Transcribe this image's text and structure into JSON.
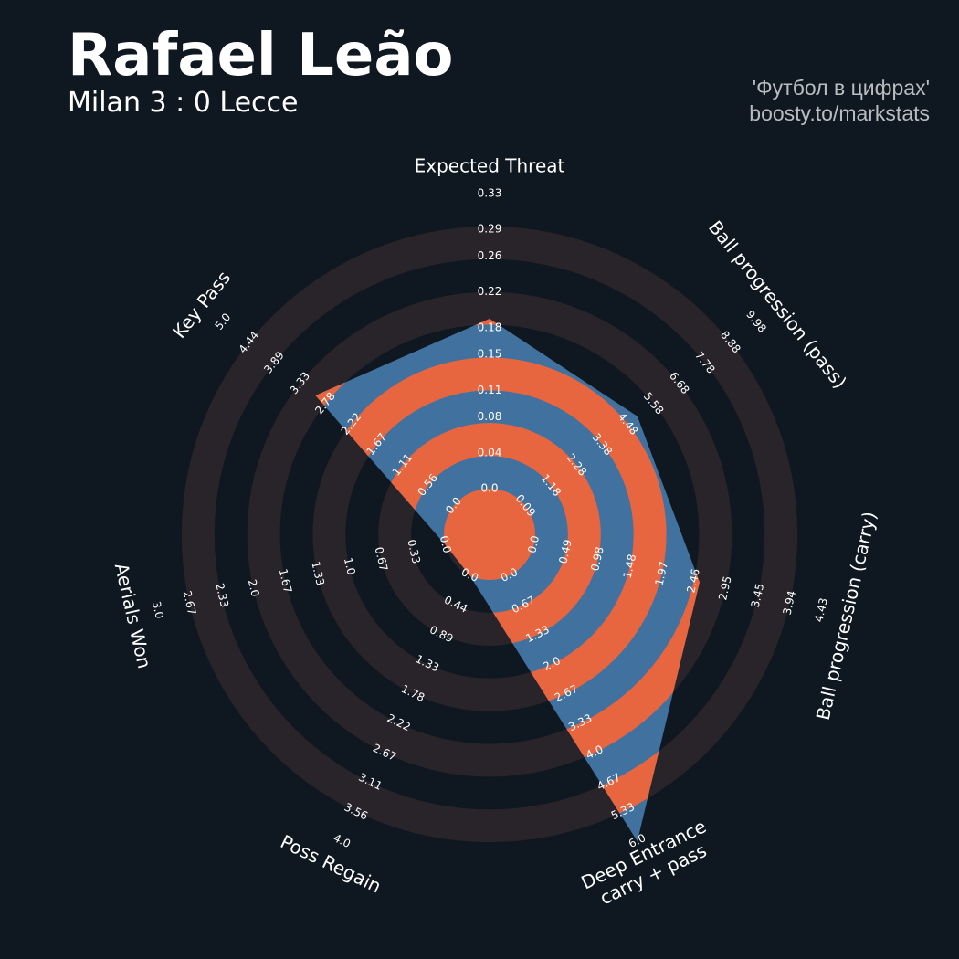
{
  "chart_data": {
    "type": "radar",
    "title": "Rafael Leão",
    "subtitle": "Milan 3 : 0 Lecce",
    "credits": [
      "'Футбол в цифрах'",
      "boosty.to/markstats"
    ],
    "categories": [
      "Expected Threat",
      "Ball progression (pass)",
      "Ball progression (carry)",
      "Deep Entrance\ncarry + pass",
      "Poss Regain",
      "Aerials Won",
      "Key Pass"
    ],
    "values": [
      0.19,
      4.9,
      2.55,
      6.0,
      0,
      0,
      3.0
    ],
    "ticks": [
      [
        {
          "value": 0,
          "label": "0.0"
        },
        0.04,
        0.08,
        0.11,
        0.15,
        0.18,
        0.22,
        0.26,
        0.29,
        0.33
      ],
      [
        0.09,
        1.18,
        2.28,
        3.38,
        4.48,
        5.58,
        6.68,
        7.78,
        8.88,
        9.98
      ],
      [
        {
          "value": 0,
          "label": "0.0"
        },
        0.49,
        0.98,
        1.48,
        1.97,
        2.46,
        2.95,
        3.45,
        3.94,
        4.43
      ],
      [
        {
          "value": 0,
          "label": "0.0"
        },
        0.67,
        1.33,
        {
          "value": 2,
          "label": "2.0"
        },
        2.67,
        3.33,
        {
          "value": 4,
          "label": "4.0"
        },
        4.67,
        5.33,
        {
          "value": 6,
          "label": "6.0"
        }
      ],
      [
        {
          "value": 0,
          "label": "0.0"
        },
        0.44,
        0.89,
        1.33,
        1.78,
        2.22,
        2.67,
        3.11,
        3.56,
        {
          "value": 4,
          "label": "4.0"
        }
      ],
      [
        {
          "value": 0,
          "label": "0.0"
        },
        0.33,
        0.67,
        {
          "value": 1,
          "label": "1.0"
        },
        1.33,
        1.67,
        {
          "value": 2,
          "label": "2.0"
        },
        2.33,
        2.67,
        {
          "value": 3,
          "label": "3.0"
        }
      ],
      [
        {
          "value": 0,
          "label": "0.0"
        },
        0.56,
        1.11,
        1.67,
        2.22,
        2.78,
        3.33,
        3.89,
        4.44,
        {
          "value": 5,
          "label": "5.0"
        }
      ]
    ],
    "color": "#41729f",
    "ring_color": "#e8663f",
    "band_color": "#29242a"
  }
}
